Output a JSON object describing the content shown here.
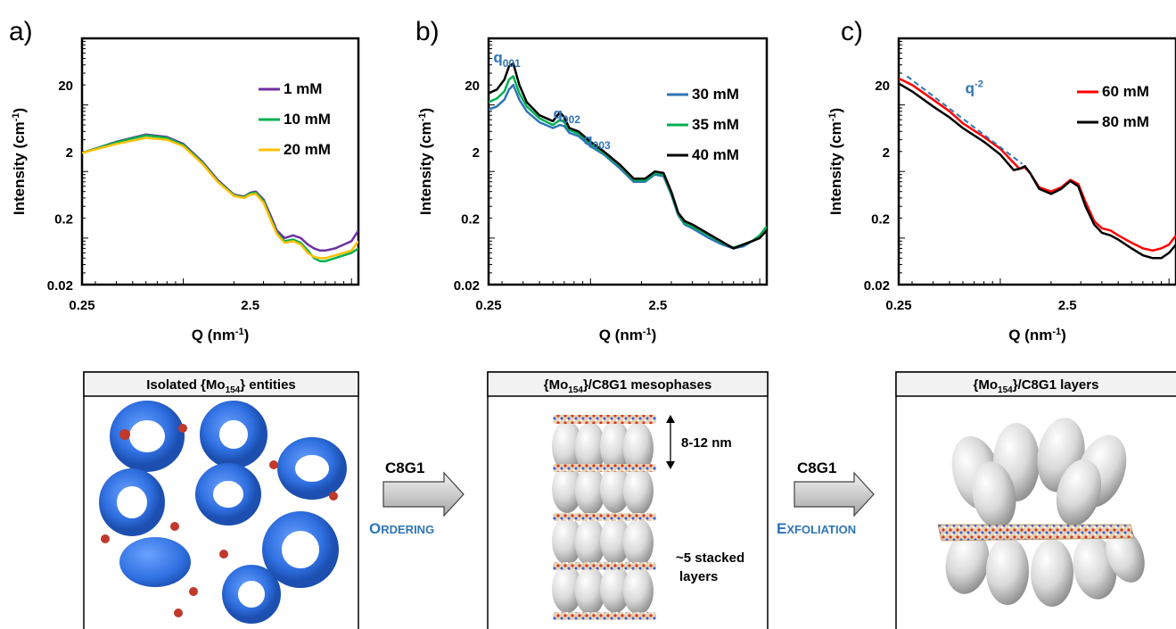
{
  "figure": {
    "panels": [
      {
        "label": "a)",
        "caption_prefix": "Isolated {Mo",
        "caption_sub": "154",
        "caption_suffix": "} entities"
      },
      {
        "label": "b)",
        "caption_prefix": "{Mo",
        "caption_sub": "154",
        "caption_suffix": "}/C8G1 mesophases",
        "annotations": [
          "8-12 nm",
          "~5 stacked",
          "layers"
        ]
      },
      {
        "label": "c)",
        "caption_prefix": "{Mo",
        "caption_sub": "154",
        "caption_suffix": "}/C8G1 layers"
      }
    ],
    "arrows": [
      {
        "label": "C8G1",
        "action_first": "O",
        "action_rest": "RDERING"
      },
      {
        "label": "C8G1",
        "action_first": "E",
        "action_rest": "XFOLIATION"
      }
    ]
  },
  "chart_data": [
    {
      "type": "line",
      "xlabel": "Q (nm⁻¹)",
      "ylabel": "Intensity (cm⁻¹)",
      "xscale": "log",
      "yscale": "log",
      "xlim": [
        0.25,
        11
      ],
      "ylim": [
        0.02,
        100
      ],
      "xticks": [
        "0.25",
        "2.5"
      ],
      "yticks": [
        "0.02",
        "0.2",
        "2",
        "20"
      ],
      "legend_position": "top-right",
      "series": [
        {
          "name": "1 mM",
          "color": "#7030a0",
          "x": [
            0.25,
            0.4,
            0.6,
            0.8,
            1.0,
            1.3,
            1.6,
            2.0,
            2.3,
            2.5,
            2.7,
            3.0,
            3.3,
            3.6,
            4.0,
            4.5,
            5.0,
            5.5,
            6.0,
            6.5,
            7.0,
            8.0,
            9.0,
            10.0,
            11.0
          ],
          "y": [
            1.9,
            2.8,
            3.6,
            3.3,
            2.6,
            1.4,
            0.75,
            0.45,
            0.42,
            0.48,
            0.5,
            0.38,
            0.22,
            0.13,
            0.1,
            0.11,
            0.1,
            0.08,
            0.07,
            0.065,
            0.065,
            0.07,
            0.08,
            0.09,
            0.13
          ]
        },
        {
          "name": "10 mM",
          "color": "#00b050",
          "x": [
            0.25,
            0.4,
            0.6,
            0.8,
            1.0,
            1.3,
            1.6,
            2.0,
            2.3,
            2.5,
            2.7,
            3.0,
            3.3,
            3.6,
            4.0,
            4.5,
            5.0,
            5.5,
            6.0,
            6.5,
            7.0,
            8.0,
            9.0,
            10.0,
            11.0
          ],
          "y": [
            1.9,
            2.75,
            3.5,
            3.2,
            2.5,
            1.35,
            0.72,
            0.44,
            0.41,
            0.47,
            0.48,
            0.36,
            0.2,
            0.12,
            0.09,
            0.095,
            0.085,
            0.065,
            0.05,
            0.045,
            0.045,
            0.05,
            0.055,
            0.06,
            0.07
          ]
        },
        {
          "name": "20 mM",
          "color": "#ffc000",
          "x": [
            0.25,
            0.4,
            0.6,
            0.8,
            1.0,
            1.3,
            1.6,
            2.0,
            2.3,
            2.5,
            2.7,
            3.0,
            3.3,
            3.6,
            4.0,
            4.5,
            5.0,
            5.5,
            6.0,
            6.5,
            7.0,
            8.0,
            9.0,
            10.0,
            11.0
          ],
          "y": [
            1.9,
            2.6,
            3.2,
            3.0,
            2.4,
            1.3,
            0.7,
            0.43,
            0.4,
            0.45,
            0.46,
            0.34,
            0.19,
            0.115,
            0.085,
            0.09,
            0.08,
            0.06,
            0.052,
            0.05,
            0.05,
            0.055,
            0.06,
            0.065,
            0.09
          ]
        }
      ]
    },
    {
      "type": "line",
      "xlabel": "Q (nm⁻¹)",
      "ylabel": "Intensity (cm⁻¹)",
      "xscale": "log",
      "yscale": "log",
      "xlim": [
        0.25,
        11
      ],
      "ylim": [
        0.02,
        100
      ],
      "xticks": [
        "0.25",
        "2.5"
      ],
      "yticks": [
        "0.02",
        "0.2",
        "2",
        "20"
      ],
      "legend_position": "top-right",
      "peak_labels": [
        {
          "base": "q",
          "sub": "001",
          "x": 0.34
        },
        {
          "base": "q",
          "sub": "002",
          "x": 0.68
        },
        {
          "base": "q",
          "sub": "003",
          "x": 1.0
        }
      ],
      "series": [
        {
          "name": "30 mM",
          "color": "#2e75b6",
          "x": [
            0.25,
            0.28,
            0.31,
            0.33,
            0.35,
            0.38,
            0.42,
            0.5,
            0.6,
            0.66,
            0.7,
            0.75,
            0.85,
            1.0,
            1.2,
            1.5,
            1.8,
            2.1,
            2.4,
            2.7,
            3.0,
            3.3,
            3.6,
            4.0,
            5.0,
            6.0,
            7.0,
            8.0,
            9.0,
            10.0,
            11.0
          ],
          "y": [
            8.5,
            9.5,
            12,
            17,
            20,
            12,
            8,
            5.5,
            4.5,
            5,
            4.8,
            3.8,
            3.4,
            2.4,
            1.8,
            1.1,
            0.7,
            0.7,
            0.9,
            0.85,
            0.45,
            0.22,
            0.16,
            0.14,
            0.1,
            0.08,
            0.07,
            0.075,
            0.09,
            0.1,
            0.13
          ]
        },
        {
          "name": "35 mM",
          "color": "#00b050",
          "x": [
            0.25,
            0.28,
            0.31,
            0.33,
            0.35,
            0.38,
            0.42,
            0.5,
            0.6,
            0.66,
            0.7,
            0.75,
            0.85,
            1.0,
            1.2,
            1.5,
            1.8,
            2.1,
            2.4,
            2.7,
            3.0,
            3.3,
            3.6,
            4.0,
            5.0,
            6.0,
            7.0,
            8.0,
            9.0,
            10.0,
            11.0
          ],
          "y": [
            11,
            12.5,
            16,
            24,
            27,
            15,
            9.5,
            6.3,
            5,
            6,
            5.5,
            4.2,
            3.7,
            2.6,
            1.9,
            1.2,
            0.75,
            0.74,
            0.95,
            0.9,
            0.47,
            0.23,
            0.17,
            0.15,
            0.11,
            0.085,
            0.072,
            0.08,
            0.09,
            0.11,
            0.15
          ]
        },
        {
          "name": "40 mM",
          "color": "#000000",
          "x": [
            0.25,
            0.28,
            0.31,
            0.33,
            0.35,
            0.38,
            0.42,
            0.5,
            0.6,
            0.66,
            0.7,
            0.75,
            0.85,
            1.0,
            1.2,
            1.5,
            1.8,
            2.1,
            2.4,
            2.7,
            3.0,
            3.3,
            3.6,
            4.0,
            5.0,
            6.0,
            7.0,
            8.0,
            9.0,
            10.0,
            11.0
          ],
          "y": [
            15,
            17,
            24,
            38,
            42,
            20,
            11,
            7,
            5.7,
            7.8,
            6.5,
            4.5,
            4,
            2.8,
            2,
            1.25,
            0.78,
            0.78,
            1.0,
            0.95,
            0.5,
            0.24,
            0.18,
            0.16,
            0.115,
            0.088,
            0.07,
            0.08,
            0.09,
            0.1,
            0.13
          ]
        }
      ]
    },
    {
      "type": "line",
      "xlabel": "Q (nm⁻¹)",
      "ylabel": "Intensity (cm⁻¹)",
      "xscale": "log",
      "yscale": "log",
      "xlim": [
        0.25,
        11
      ],
      "ylim": [
        0.02,
        100
      ],
      "xticks": [
        "0.25",
        "2.5"
      ],
      "yticks": [
        "0.02",
        "0.2",
        "2",
        "20"
      ],
      "legend_position": "top-right",
      "annotation": {
        "base": "q",
        "sup": "-2",
        "style": "dashed",
        "color": "#2e75b6",
        "x": [
          0.28,
          1.35
        ],
        "y": [
          27,
          1.3
        ]
      },
      "series": [
        {
          "name": "60 mM",
          "color": "#ff0000",
          "x": [
            0.25,
            0.3,
            0.4,
            0.5,
            0.6,
            0.8,
            1.0,
            1.2,
            1.3,
            1.4,
            1.5,
            1.7,
            2.0,
            2.3,
            2.6,
            2.9,
            3.2,
            3.6,
            4.0,
            4.5,
            5.0,
            6.0,
            7.0,
            8.0,
            9.0,
            10.0,
            11.0
          ],
          "y": [
            25,
            20,
            12,
            8,
            5.3,
            3.3,
            2.2,
            1.35,
            1.1,
            1.15,
            0.95,
            0.58,
            0.5,
            0.58,
            0.75,
            0.65,
            0.35,
            0.18,
            0.14,
            0.13,
            0.11,
            0.085,
            0.07,
            0.065,
            0.07,
            0.08,
            0.11
          ]
        },
        {
          "name": "80 mM",
          "color": "#000000",
          "x": [
            0.25,
            0.3,
            0.4,
            0.5,
            0.6,
            0.8,
            1.0,
            1.2,
            1.3,
            1.4,
            1.5,
            1.7,
            2.0,
            2.3,
            2.6,
            2.9,
            3.2,
            3.6,
            4.0,
            4.5,
            5.0,
            6.0,
            7.0,
            8.0,
            9.0,
            10.0,
            11.0
          ],
          "y": [
            21,
            16,
            9.5,
            6.5,
            4.5,
            2.8,
            1.8,
            1.05,
            1.1,
            1.2,
            0.95,
            0.55,
            0.46,
            0.55,
            0.72,
            0.6,
            0.3,
            0.16,
            0.12,
            0.11,
            0.095,
            0.07,
            0.055,
            0.05,
            0.05,
            0.06,
            0.08
          ]
        }
      ]
    }
  ]
}
